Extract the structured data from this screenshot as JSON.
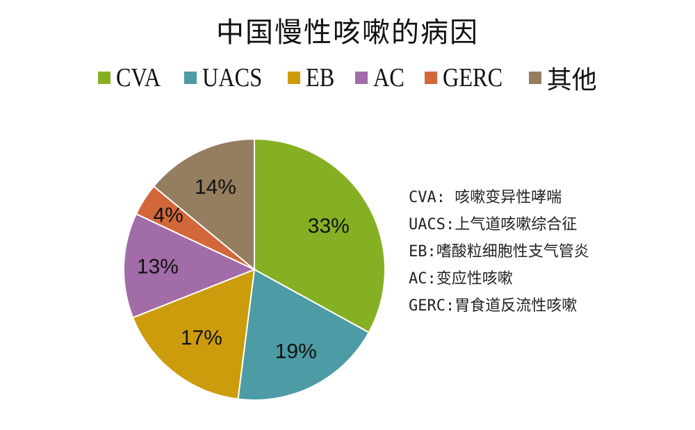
{
  "chart_data": {
    "type": "pie",
    "title": "中国慢性咳嗽的病因",
    "legend_position": "top",
    "categories": [
      "CVA",
      "UACS",
      "EB",
      "AC",
      "GERC",
      "其他"
    ],
    "values": [
      33,
      19,
      17,
      13,
      4,
      14
    ],
    "labels": [
      "33%",
      "19%",
      "17%",
      "13%",
      "4%",
      "14%"
    ],
    "colors": [
      "#86b023",
      "#4c9ba5",
      "#cc9c0d",
      "#a26ca8",
      "#d2683a",
      "#957d5f"
    ],
    "start_angle_deg": 0,
    "direction": "clockwise",
    "annotations": [
      "CVA: 咳嗽变异性哮喘",
      "UACS:上气道咳嗽综合征",
      "EB:嗜酸粒细胞性支气管炎",
      "AC:变应性咳嗽",
      "GERC:胃食道反流性咳嗽"
    ]
  },
  "legend": [
    {
      "label": "CVA",
      "color": "#86b023"
    },
    {
      "label": "UACS",
      "color": "#4c9ba5"
    },
    {
      "label": "EB",
      "color": "#cc9c0d"
    },
    {
      "label": "AC",
      "color": "#a26ca8"
    },
    {
      "label": "GERC",
      "color": "#d2683a"
    },
    {
      "label": "其他",
      "color": "#957d5f"
    }
  ]
}
